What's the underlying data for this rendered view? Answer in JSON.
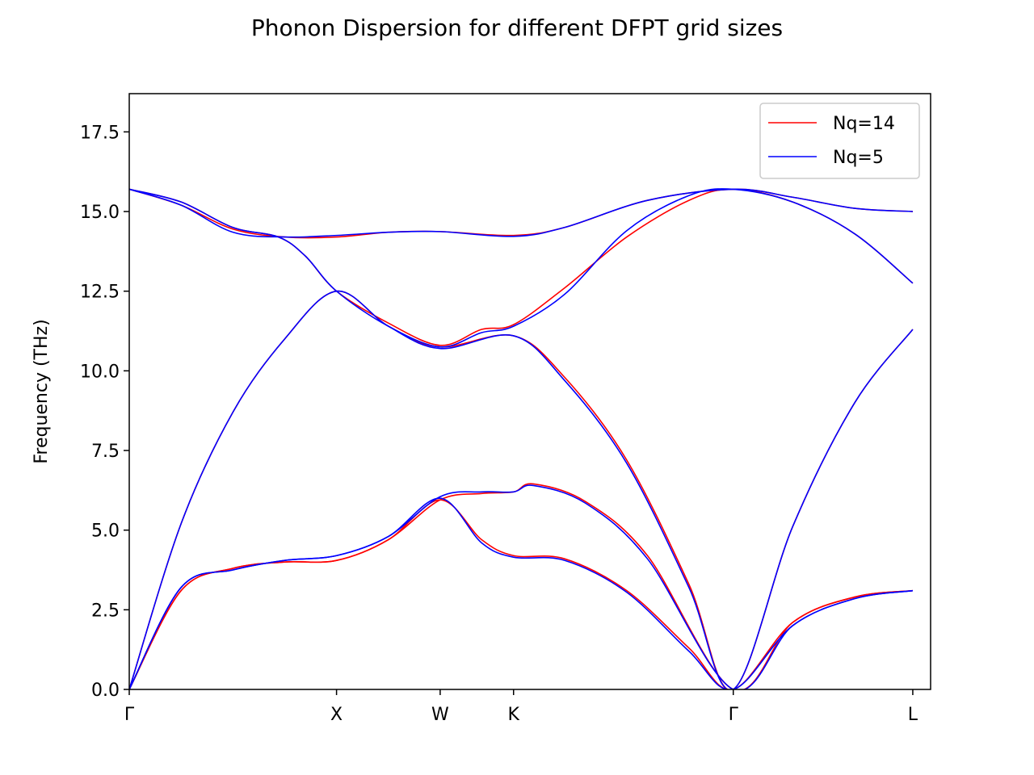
{
  "chart_data": {
    "type": "line",
    "title": "Phonon Dispersion for different DFPT grid sizes",
    "xlabel": "",
    "ylabel": "Frequency (THz)",
    "xlim": [
      0,
      3.866
    ],
    "ylim": [
      0,
      18.7
    ],
    "yticks": [
      0.0,
      2.5,
      5.0,
      7.5,
      10.0,
      12.5,
      15.0,
      17.5
    ],
    "ytick_labels": [
      "0.0",
      "2.5",
      "5.0",
      "7.5",
      "10.0",
      "12.5",
      "15.0",
      "17.5"
    ],
    "high_symmetry_points": [
      {
        "label": "Γ",
        "x": 0.0
      },
      {
        "label": "X",
        "x": 1.0
      },
      {
        "label": "W",
        "x": 1.5
      },
      {
        "label": "K",
        "x": 1.854
      },
      {
        "label": "Γ",
        "x": 2.914
      },
      {
        "label": "L",
        "x": 3.78
      }
    ],
    "grid": false,
    "legend": {
      "placement": "top-right"
    },
    "series": [
      {
        "name": "Nq=14",
        "color": "#ff0000",
        "bands": [
          [
            [
              0,
              0
            ],
            [
              0.25,
              3.1
            ],
            [
              0.5,
              3.8
            ],
            [
              0.75,
              4.0
            ],
            [
              1.0,
              4.05
            ],
            [
              1.25,
              4.7
            ],
            [
              1.5,
              5.95
            ],
            [
              1.7,
              4.7
            ],
            [
              1.854,
              4.2
            ],
            [
              2.1,
              4.1
            ],
            [
              2.4,
              3.1
            ],
            [
              2.7,
              1.3
            ],
            [
              2.914,
              0
            ],
            [
              3.2,
              2.1
            ],
            [
              3.5,
              2.9
            ],
            [
              3.78,
              3.1
            ]
          ],
          [
            [
              0,
              0
            ],
            [
              0.25,
              3.1
            ],
            [
              0.5,
              3.8
            ],
            [
              0.75,
              4.0
            ],
            [
              1.0,
              4.05
            ],
            [
              1.25,
              4.7
            ],
            [
              1.5,
              5.95
            ],
            [
              1.7,
              6.15
            ],
            [
              1.854,
              6.2
            ],
            [
              1.95,
              6.45
            ],
            [
              2.2,
              5.9
            ],
            [
              2.5,
              4.2
            ],
            [
              2.914,
              0
            ],
            [
              3.2,
              2.1
            ],
            [
              3.5,
              2.9
            ],
            [
              3.78,
              3.1
            ]
          ],
          [
            [
              0,
              0
            ],
            [
              0.25,
              5.2
            ],
            [
              0.5,
              8.7
            ],
            [
              0.75,
              11.0
            ],
            [
              1.0,
              12.5
            ],
            [
              1.25,
              11.4
            ],
            [
              1.5,
              10.75
            ],
            [
              1.854,
              11.1
            ],
            [
              2.1,
              9.8
            ],
            [
              2.4,
              7.2
            ],
            [
              2.7,
              3.3
            ],
            [
              2.914,
              0
            ],
            [
              3.2,
              5.1
            ],
            [
              3.5,
              9.0
            ],
            [
              3.78,
              11.3
            ]
          ],
          [
            [
              0,
              15.7
            ],
            [
              0.25,
              15.3
            ],
            [
              0.5,
              14.5
            ],
            [
              0.72,
              14.2
            ],
            [
              0.85,
              13.6
            ],
            [
              1.0,
              12.5
            ],
            [
              1.25,
              11.5
            ],
            [
              1.5,
              10.8
            ],
            [
              1.7,
              11.3
            ],
            [
              1.854,
              11.45
            ],
            [
              2.1,
              12.6
            ],
            [
              2.4,
              14.2
            ],
            [
              2.7,
              15.35
            ],
            [
              2.914,
              15.7
            ],
            [
              3.2,
              15.3
            ],
            [
              3.5,
              14.3
            ],
            [
              3.78,
              12.75
            ]
          ],
          [
            [
              0,
              15.7
            ],
            [
              0.25,
              15.2
            ],
            [
              0.5,
              14.45
            ],
            [
              0.75,
              14.2
            ],
            [
              1.0,
              14.2
            ],
            [
              1.25,
              14.35
            ],
            [
              1.5,
              14.37
            ],
            [
              1.854,
              14.25
            ],
            [
              2.1,
              14.5
            ],
            [
              2.5,
              15.35
            ],
            [
              2.914,
              15.7
            ],
            [
              3.2,
              15.45
            ],
            [
              3.5,
              15.1
            ],
            [
              3.78,
              15.0
            ]
          ]
        ]
      },
      {
        "name": "Nq=5",
        "color": "#0000ff",
        "bands": [
          [
            [
              0,
              0
            ],
            [
              0.25,
              3.2
            ],
            [
              0.5,
              3.75
            ],
            [
              0.75,
              4.05
            ],
            [
              1.0,
              4.2
            ],
            [
              1.25,
              4.8
            ],
            [
              1.5,
              6.0
            ],
            [
              1.7,
              4.6
            ],
            [
              1.854,
              4.15
            ],
            [
              2.1,
              4.05
            ],
            [
              2.4,
              3.05
            ],
            [
              2.7,
              1.2
            ],
            [
              2.914,
              0
            ],
            [
              3.2,
              2.0
            ],
            [
              3.5,
              2.85
            ],
            [
              3.78,
              3.1
            ]
          ],
          [
            [
              0,
              0
            ],
            [
              0.25,
              3.2
            ],
            [
              0.5,
              3.75
            ],
            [
              0.75,
              4.05
            ],
            [
              1.0,
              4.2
            ],
            [
              1.25,
              4.8
            ],
            [
              1.5,
              6.05
            ],
            [
              1.7,
              6.2
            ],
            [
              1.854,
              6.2
            ],
            [
              1.95,
              6.4
            ],
            [
              2.2,
              5.85
            ],
            [
              2.5,
              4.1
            ],
            [
              2.914,
              0
            ],
            [
              3.2,
              2.0
            ],
            [
              3.5,
              2.85
            ],
            [
              3.78,
              3.1
            ]
          ],
          [
            [
              0,
              0
            ],
            [
              0.25,
              5.2
            ],
            [
              0.5,
              8.7
            ],
            [
              0.75,
              11.0
            ],
            [
              1.0,
              12.5
            ],
            [
              1.25,
              11.4
            ],
            [
              1.5,
              10.7
            ],
            [
              1.854,
              11.1
            ],
            [
              2.1,
              9.7
            ],
            [
              2.4,
              7.1
            ],
            [
              2.7,
              3.2
            ],
            [
              2.914,
              0
            ],
            [
              3.2,
              5.1
            ],
            [
              3.5,
              9.0
            ],
            [
              3.78,
              11.3
            ]
          ],
          [
            [
              0,
              15.7
            ],
            [
              0.25,
              15.3
            ],
            [
              0.5,
              14.5
            ],
            [
              0.72,
              14.2
            ],
            [
              0.85,
              13.6
            ],
            [
              1.0,
              12.5
            ],
            [
              1.25,
              11.4
            ],
            [
              1.5,
              10.75
            ],
            [
              1.7,
              11.2
            ],
            [
              1.854,
              11.4
            ],
            [
              2.1,
              12.4
            ],
            [
              2.4,
              14.4
            ],
            [
              2.7,
              15.5
            ],
            [
              2.914,
              15.7
            ],
            [
              3.2,
              15.3
            ],
            [
              3.5,
              14.3
            ],
            [
              3.78,
              12.75
            ]
          ],
          [
            [
              0,
              15.7
            ],
            [
              0.25,
              15.2
            ],
            [
              0.5,
              14.35
            ],
            [
              0.75,
              14.2
            ],
            [
              1.0,
              14.25
            ],
            [
              1.25,
              14.35
            ],
            [
              1.5,
              14.37
            ],
            [
              1.854,
              14.22
            ],
            [
              2.1,
              14.5
            ],
            [
              2.5,
              15.35
            ],
            [
              2.914,
              15.7
            ],
            [
              3.2,
              15.45
            ],
            [
              3.5,
              15.1
            ],
            [
              3.78,
              15.0
            ]
          ]
        ]
      }
    ]
  }
}
